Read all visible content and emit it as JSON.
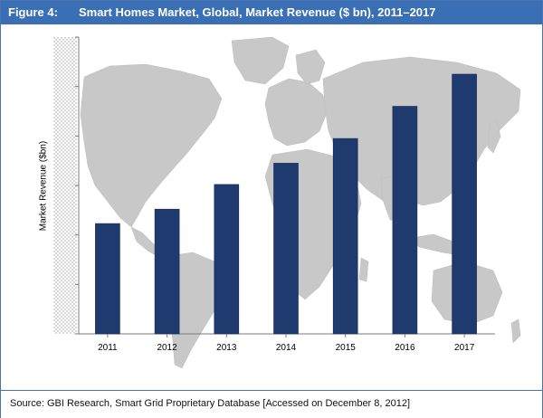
{
  "header": {
    "figure_label": "Figure 4:",
    "title": "Smart Homes Market, Global, Market Revenue ($ bn), 2011–2017"
  },
  "footer": {
    "source": "Source: GBI Research, Smart Grid Proprietary Database [Accessed on December 8, 2012]"
  },
  "colors": {
    "header_bg": "#3a6fb5",
    "bar": "#1e3a6e",
    "map": "#c8c8c8"
  },
  "chart_data": {
    "type": "bar",
    "title": "Smart Homes Market, Global, Market Revenue ($ bn), 2011–2017",
    "xlabel": "",
    "ylabel": "Market Revenue ($bn)",
    "categories": [
      "2011",
      "2012",
      "2013",
      "2014",
      "2015",
      "2016",
      "2017"
    ],
    "values": [
      22.3,
      25.2,
      30.2,
      34.5,
      39.5,
      46.0,
      52.5
    ],
    "ylim": [
      0,
      60
    ],
    "y_tick_labels_shown": false,
    "grid": false,
    "legend": "none",
    "background_image": "world-map"
  }
}
